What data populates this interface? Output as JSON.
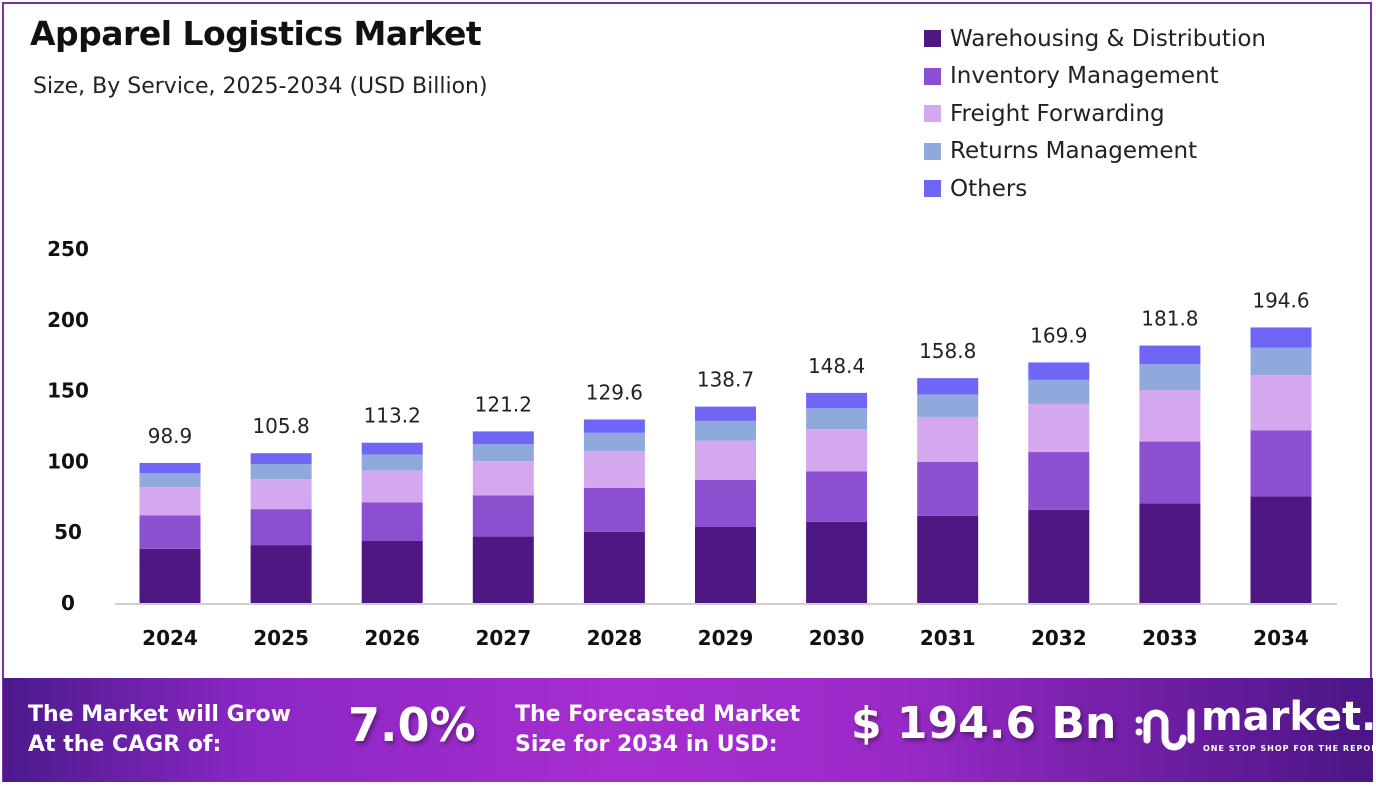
{
  "chart_data": {
    "type": "bar",
    "stacked": true,
    "title": "Apparel Logistics Market",
    "subtitle": "Size, By Service, 2025-2034 (USD Billion)",
    "categories": [
      "2024",
      "2025",
      "2026",
      "2027",
      "2028",
      "2029",
      "2030",
      "2031",
      "2032",
      "2033",
      "2034"
    ],
    "totals": [
      98.9,
      105.8,
      113.2,
      121.2,
      129.6,
      138.7,
      148.4,
      158.8,
      169.9,
      181.8,
      194.6
    ],
    "totals_labels": [
      "98.9",
      "105.8",
      "113.2",
      "121.2",
      "129.6",
      "138.7",
      "148.4",
      "158.8",
      "169.9",
      "181.8",
      "194.6"
    ],
    "series": [
      {
        "name": "Warehousing & Distribution",
        "color": "#4f1782",
        "values": [
          38.3,
          40.9,
          43.8,
          46.9,
          50.2,
          53.7,
          57.4,
          61.5,
          65.8,
          70.4,
          75.3
        ]
      },
      {
        "name": "Inventory Management",
        "color": "#8b4fcf",
        "values": [
          23.7,
          25.4,
          27.2,
          29.1,
          31.1,
          33.3,
          35.6,
          38.1,
          40.8,
          43.6,
          46.7
        ]
      },
      {
        "name": "Freight Forwarding",
        "color": "#d4a8ef",
        "values": [
          19.8,
          21.2,
          22.6,
          24.2,
          25.9,
          27.7,
          29.7,
          31.8,
          34.0,
          36.4,
          38.9
        ]
      },
      {
        "name": "Returns Management",
        "color": "#8fa9dc",
        "values": [
          9.9,
          10.6,
          11.3,
          12.1,
          13.0,
          13.9,
          14.8,
          15.9,
          17.0,
          18.2,
          19.5
        ]
      },
      {
        "name": "Others",
        "color": "#7066f5",
        "values": [
          7.2,
          7.7,
          8.3,
          8.9,
          9.4,
          10.1,
          10.9,
          11.5,
          12.3,
          13.2,
          14.2
        ]
      }
    ],
    "ylim": [
      0,
      250
    ],
    "yticks": [
      "0",
      "50",
      "100",
      "150",
      "200",
      "250"
    ],
    "grid": false,
    "legend_position": "top-right"
  },
  "footer": {
    "cagr_label_1": "The Market will Grow",
    "cagr_label_2": "At the CAGR of:",
    "cagr_value": "7.0%",
    "forecast_label_1": "The Forecasted Market",
    "forecast_label_2": "Size for 2034 in USD:",
    "forecast_value": "$ 194.6 Bn"
  },
  "logo": {
    "name": "market.us",
    "tagline": "ONE STOP SHOP FOR THE REPORTS"
  }
}
